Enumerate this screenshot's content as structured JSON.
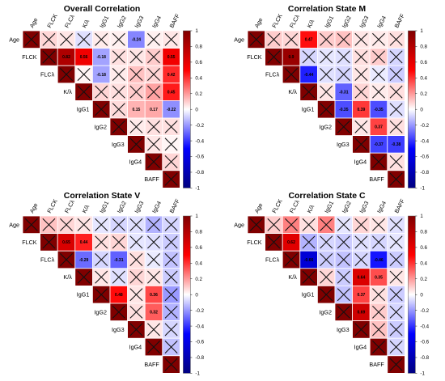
{
  "chart_data": [
    {
      "type": "heatmap",
      "title": "Overall Correlation",
      "variables": [
        "Age",
        "FLCK",
        "FLCλ",
        "K/λ",
        "IgG1",
        "IgG2",
        "IgG3",
        "IgG4",
        "BAFF"
      ],
      "ylim": [
        -1,
        1
      ],
      "colorbar_ticks": [
        "1",
        "0.8",
        "0.6",
        "0.4",
        "0.2",
        "0",
        "-0.2",
        "-0.4",
        "-0.6",
        "-0.8",
        "-1"
      ],
      "matrix": [
        [
          1,
          0.08,
          0.05,
          -0.06,
          0.04,
          0.03,
          -0.24,
          0.03,
          0.05
        ],
        [
          null,
          1,
          0.82,
          0.56,
          -0.18,
          0.06,
          0.05,
          0.1,
          0.55
        ],
        [
          null,
          null,
          1,
          0.02,
          -0.18,
          0.04,
          0.12,
          0.08,
          0.42
        ],
        [
          null,
          null,
          null,
          1,
          0.08,
          0.06,
          0.1,
          0.18,
          0.45
        ],
        [
          null,
          null,
          null,
          null,
          1,
          0.07,
          0.15,
          0.17,
          -0.22
        ],
        [
          null,
          null,
          null,
          null,
          null,
          1,
          0.04,
          0.06,
          0.06
        ],
        [
          null,
          null,
          null,
          null,
          null,
          null,
          1,
          0.05,
          0.02
        ],
        [
          null,
          null,
          null,
          null,
          null,
          null,
          null,
          1,
          0.08
        ],
        [
          null,
          null,
          null,
          null,
          null,
          null,
          null,
          null,
          1
        ]
      ],
      "labels": [
        [
          null,
          null,
          null,
          null,
          null,
          null,
          "-0.24",
          null,
          null
        ],
        [
          null,
          null,
          "0.82",
          "0.56",
          "-0.18",
          null,
          null,
          null,
          "0.55"
        ],
        [
          null,
          null,
          null,
          null,
          "-0.18",
          null,
          null,
          null,
          "0.42"
        ],
        [
          null,
          null,
          null,
          null,
          null,
          null,
          null,
          null,
          "0.45"
        ],
        [
          null,
          null,
          null,
          null,
          null,
          null,
          "0.15",
          "0.17",
          "-0.22"
        ]
      ],
      "crossed": [
        [
          1,
          1,
          1,
          1,
          1,
          1,
          0,
          1,
          1
        ],
        [
          0,
          1,
          0,
          0,
          0,
          1,
          1,
          1,
          0
        ],
        [
          0,
          0,
          1,
          1,
          0,
          1,
          1,
          1,
          0
        ],
        [
          0,
          0,
          0,
          1,
          1,
          1,
          1,
          1,
          0
        ],
        [
          0,
          0,
          0,
          0,
          1,
          1,
          0,
          0,
          0
        ],
        [
          0,
          0,
          0,
          0,
          0,
          1,
          1,
          1,
          1
        ],
        [
          0,
          0,
          0,
          0,
          0,
          0,
          1,
          1,
          1
        ],
        [
          0,
          0,
          0,
          0,
          0,
          0,
          0,
          1,
          1
        ],
        [
          0,
          0,
          0,
          0,
          0,
          0,
          0,
          0,
          1
        ]
      ]
    },
    {
      "type": "heatmap",
      "title": "Correlation State M",
      "variables": [
        "Age",
        "FLCK",
        "FLCλ",
        "K/λ",
        "IgG1",
        "IgG2",
        "IgG3",
        "IgG4",
        "BAFF"
      ],
      "ylim": [
        -1,
        1
      ],
      "colorbar_ticks": [
        "1",
        "0.8",
        "0.6",
        "0.4",
        "0.2",
        "0",
        "-0.2",
        "-0.4",
        "-0.6",
        "-0.8",
        "-1"
      ],
      "matrix": [
        [
          1,
          0.1,
          0.08,
          0.47,
          0.1,
          0.12,
          0.05,
          0.04,
          0.06
        ],
        [
          null,
          1,
          0.9,
          -0.08,
          -0.05,
          -0.06,
          0.06,
          0.1,
          -0.08
        ],
        [
          null,
          null,
          1,
          -0.44,
          -0.06,
          -0.08,
          0.05,
          -0.04,
          -0.1
        ],
        [
          null,
          null,
          null,
          1,
          0.05,
          -0.31,
          0.08,
          0.04,
          0.06
        ],
        [
          null,
          null,
          null,
          null,
          1,
          -0.35,
          0.39,
          -0.35,
          -0.06
        ],
        [
          null,
          null,
          null,
          null,
          null,
          1,
          0.05,
          0.37,
          0.06
        ],
        [
          null,
          null,
          null,
          null,
          null,
          null,
          1,
          -0.37,
          -0.38
        ],
        [
          null,
          null,
          null,
          null,
          null,
          null,
          null,
          1,
          0.06
        ],
        [
          null,
          null,
          null,
          null,
          null,
          null,
          null,
          null,
          1
        ]
      ],
      "labels": [
        [
          null,
          null,
          null,
          "0.47",
          null,
          null,
          null,
          null,
          null
        ],
        [
          null,
          null,
          "0.9",
          null,
          null,
          null,
          null,
          null,
          null
        ],
        [
          null,
          null,
          null,
          "-0.44",
          null,
          null,
          null,
          null,
          null
        ],
        [
          null,
          null,
          null,
          null,
          null,
          "-0.31",
          null,
          null,
          null
        ],
        [
          null,
          null,
          null,
          null,
          null,
          "-0.35",
          "0.39",
          "-0.35",
          null
        ],
        [
          null,
          null,
          null,
          null,
          null,
          null,
          null,
          "0.37",
          null
        ],
        [
          null,
          null,
          null,
          null,
          null,
          null,
          null,
          "-0.37",
          "-0.38"
        ]
      ],
      "crossed": [
        [
          1,
          1,
          1,
          0,
          1,
          1,
          1,
          1,
          1
        ],
        [
          0,
          1,
          0,
          1,
          1,
          1,
          1,
          1,
          1
        ],
        [
          0,
          0,
          1,
          0,
          1,
          1,
          1,
          1,
          1
        ],
        [
          0,
          0,
          0,
          1,
          1,
          0,
          1,
          1,
          1
        ],
        [
          0,
          0,
          0,
          0,
          1,
          0,
          0,
          0,
          1
        ],
        [
          0,
          0,
          0,
          0,
          0,
          1,
          1,
          0,
          1
        ],
        [
          0,
          0,
          0,
          0,
          0,
          0,
          1,
          0,
          0
        ],
        [
          0,
          0,
          0,
          0,
          0,
          0,
          0,
          1,
          1
        ],
        [
          0,
          0,
          0,
          0,
          0,
          0,
          0,
          0,
          1
        ]
      ]
    },
    {
      "type": "heatmap",
      "title": "Correlation State V",
      "variables": [
        "Age",
        "FLCK",
        "FLCλ",
        "K/λ",
        "IgG1",
        "IgG2",
        "IgG3",
        "IgG4",
        "BAFF"
      ],
      "ylim": [
        -1,
        1
      ],
      "colorbar_ticks": [
        "1",
        "0.8",
        "0.6",
        "0.4",
        "0.2",
        "0",
        "-0.2",
        "-0.4",
        "-0.6",
        "-0.8",
        "-1"
      ],
      "matrix": [
        [
          1,
          0.12,
          0.08,
          0.05,
          -0.05,
          -0.08,
          -0.06,
          -0.15,
          -0.08
        ],
        [
          null,
          1,
          0.65,
          0.44,
          0.06,
          0.08,
          -0.05,
          -0.06,
          -0.1
        ],
        [
          null,
          null,
          1,
          -0.29,
          -0.08,
          -0.31,
          0.06,
          -0.04,
          -0.12
        ],
        [
          null,
          null,
          null,
          1,
          0.05,
          -0.06,
          0.08,
          0.05,
          -0.1
        ],
        [
          null,
          null,
          null,
          null,
          1,
          0.48,
          0.05,
          0.36,
          -0.2
        ],
        [
          null,
          null,
          null,
          null,
          null,
          1,
          0.06,
          0.32,
          -0.15
        ],
        [
          null,
          null,
          null,
          null,
          null,
          null,
          1,
          0.05,
          -0.08
        ],
        [
          null,
          null,
          null,
          null,
          null,
          null,
          null,
          1,
          -0.12
        ],
        [
          null,
          null,
          null,
          null,
          null,
          null,
          null,
          null,
          1
        ]
      ],
      "labels": [
        [
          null,
          null,
          null,
          null,
          null,
          null,
          null,
          null,
          null
        ],
        [
          null,
          null,
          "0.65",
          "0.44",
          null,
          null,
          null,
          null,
          null
        ],
        [
          null,
          null,
          null,
          "-0.29",
          null,
          "-0.31",
          null,
          null,
          null
        ],
        [
          null,
          null,
          null,
          null,
          null,
          null,
          null,
          null,
          null
        ],
        [
          null,
          null,
          null,
          null,
          null,
          "0.48",
          null,
          "0.36",
          null
        ],
        [
          null,
          null,
          null,
          null,
          null,
          null,
          null,
          "0.32",
          null
        ]
      ],
      "crossed": [
        [
          1,
          1,
          1,
          1,
          1,
          1,
          1,
          1,
          1
        ],
        [
          0,
          1,
          0,
          0,
          1,
          1,
          1,
          1,
          1
        ],
        [
          0,
          0,
          1,
          0,
          1,
          0,
          1,
          1,
          1
        ],
        [
          0,
          0,
          0,
          1,
          1,
          1,
          1,
          1,
          1
        ],
        [
          0,
          0,
          0,
          0,
          1,
          0,
          1,
          0,
          1
        ],
        [
          0,
          0,
          0,
          0,
          0,
          1,
          1,
          0,
          1
        ],
        [
          0,
          0,
          0,
          0,
          0,
          0,
          1,
          1,
          1
        ],
        [
          0,
          0,
          0,
          0,
          0,
          0,
          0,
          1,
          1
        ],
        [
          0,
          0,
          0,
          0,
          0,
          0,
          0,
          0,
          1
        ]
      ]
    },
    {
      "type": "heatmap",
      "title": "Correlation State C",
      "variables": [
        "Age",
        "FLCK",
        "FLCλ",
        "K/λ",
        "IgG1",
        "IgG2",
        "IgG3",
        "IgG4",
        "BAFF"
      ],
      "ylim": [
        -1,
        1
      ],
      "colorbar_ticks": [
        "1",
        "0.8",
        "0.6",
        "0.4",
        "0.2",
        "0",
        "-0.2",
        "-0.4",
        "-0.6",
        "-0.8",
        "-1"
      ],
      "matrix": [
        [
          1,
          0.1,
          0.25,
          0.06,
          0.25,
          -0.05,
          0.08,
          0.05,
          -0.06
        ],
        [
          null,
          1,
          0.62,
          -0.15,
          -0.08,
          -0.1,
          -0.06,
          -0.08,
          -0.05
        ],
        [
          null,
          null,
          1,
          -0.66,
          -0.1,
          -0.12,
          -0.08,
          -0.46,
          -0.1
        ],
        [
          null,
          null,
          null,
          1,
          0.08,
          -0.1,
          0.64,
          0.35,
          0.05
        ],
        [
          null,
          null,
          null,
          null,
          1,
          -0.12,
          0.37,
          0.06,
          -0.1
        ],
        [
          null,
          null,
          null,
          null,
          null,
          1,
          0.69,
          0.1,
          -0.08
        ],
        [
          null,
          null,
          null,
          null,
          null,
          null,
          1,
          0.12,
          -0.1
        ],
        [
          null,
          null,
          null,
          null,
          null,
          null,
          null,
          1,
          -0.08
        ],
        [
          null,
          null,
          null,
          null,
          null,
          null,
          null,
          null,
          1
        ]
      ],
      "labels": [
        [
          null,
          null,
          null,
          null,
          null,
          null,
          null,
          null,
          null
        ],
        [
          null,
          null,
          "0.62",
          null,
          null,
          null,
          null,
          null,
          null
        ],
        [
          null,
          null,
          null,
          "-0.66",
          null,
          null,
          null,
          "-0.46",
          null
        ],
        [
          null,
          null,
          null,
          null,
          null,
          null,
          "0.64",
          "0.35",
          null
        ],
        [
          null,
          null,
          null,
          null,
          null,
          null,
          "0.37",
          null,
          null
        ],
        [
          null,
          null,
          null,
          null,
          null,
          null,
          "0.69",
          null,
          null
        ]
      ],
      "crossed": [
        [
          1,
          1,
          1,
          1,
          1,
          1,
          1,
          1,
          1
        ],
        [
          0,
          1,
          0,
          1,
          1,
          1,
          1,
          1,
          1
        ],
        [
          0,
          0,
          1,
          0,
          1,
          1,
          1,
          0,
          1
        ],
        [
          0,
          0,
          0,
          1,
          1,
          1,
          0,
          0,
          1
        ],
        [
          0,
          0,
          0,
          0,
          1,
          1,
          0,
          1,
          1
        ],
        [
          0,
          0,
          0,
          0,
          0,
          1,
          0,
          1,
          1
        ],
        [
          0,
          0,
          0,
          0,
          0,
          0,
          1,
          1,
          1
        ],
        [
          0,
          0,
          0,
          0,
          0,
          0,
          0,
          1,
          1
        ],
        [
          0,
          0,
          0,
          0,
          0,
          0,
          0,
          0,
          1
        ]
      ]
    }
  ]
}
